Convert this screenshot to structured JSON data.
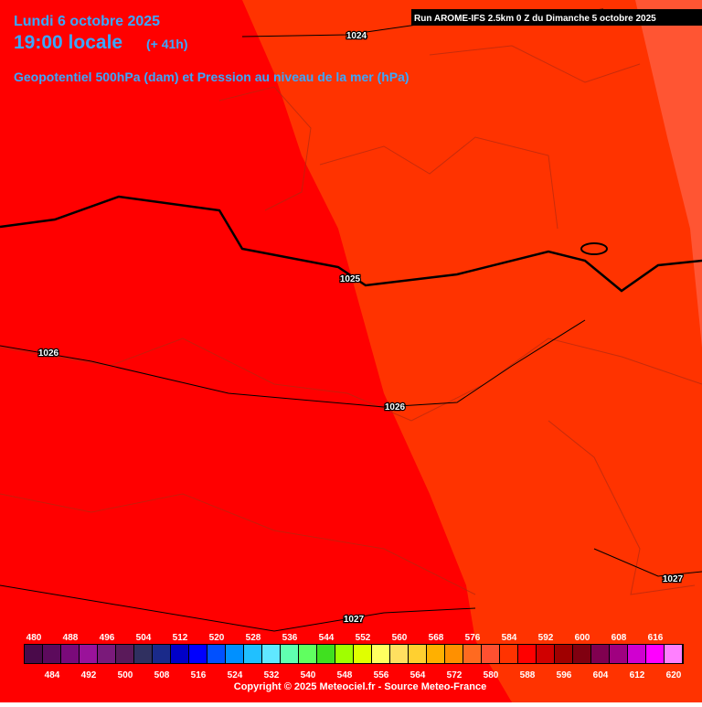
{
  "header": {
    "date": "Lundi 6 octobre 2025",
    "time": "19:00 locale",
    "lead": "(+ 41h)",
    "parameter": "Geopotentiel 500hPa (dam) et Pression au niveau de la mer (hPa)",
    "run": "Run AROME-IFS 2.5km 0 Z du Dimanche 5 octobre 2025"
  },
  "isobars": [
    {
      "label": "1024"
    },
    {
      "label": "1025"
    },
    {
      "label": "1026"
    },
    {
      "label": "1026"
    },
    {
      "label": "1027"
    },
    {
      "label": "1027"
    }
  ],
  "legend": [
    {
      "value": "480",
      "color": "#4a0a4a"
    },
    {
      "value": "484",
      "color": "#5c0a5c"
    },
    {
      "value": "488",
      "color": "#7a0a7a"
    },
    {
      "value": "492",
      "color": "#9a129a"
    },
    {
      "value": "496",
      "color": "#7a1a7a"
    },
    {
      "value": "500",
      "color": "#5a1a5a"
    },
    {
      "value": "504",
      "color": "#303060"
    },
    {
      "value": "508",
      "color": "#1a2a8a"
    },
    {
      "value": "512",
      "color": "#0000c8"
    },
    {
      "value": "516",
      "color": "#0000ff"
    },
    {
      "value": "520",
      "color": "#0050ff"
    },
    {
      "value": "524",
      "color": "#0090ff"
    },
    {
      "value": "528",
      "color": "#20c0ff"
    },
    {
      "value": "532",
      "color": "#60e8ff"
    },
    {
      "value": "536",
      "color": "#60ffb0"
    },
    {
      "value": "540",
      "color": "#60ff60"
    },
    {
      "value": "544",
      "color": "#40e020"
    },
    {
      "value": "548",
      "color": "#a0ff00"
    },
    {
      "value": "552",
      "color": "#e0ff00"
    },
    {
      "value": "556",
      "color": "#ffff60"
    },
    {
      "value": "560",
      "color": "#ffe060"
    },
    {
      "value": "564",
      "color": "#ffd030"
    },
    {
      "value": "568",
      "color": "#ffb000"
    },
    {
      "value": "572",
      "color": "#ff9000"
    },
    {
      "value": "576",
      "color": "#ff6a20"
    },
    {
      "value": "580",
      "color": "#ff5030"
    },
    {
      "value": "584",
      "color": "#ff3300"
    },
    {
      "value": "588",
      "color": "#ff0000"
    },
    {
      "value": "592",
      "color": "#d00000"
    },
    {
      "value": "596",
      "color": "#a00000"
    },
    {
      "value": "600",
      "color": "#800010"
    },
    {
      "value": "604",
      "color": "#800050"
    },
    {
      "value": "608",
      "color": "#a00080"
    },
    {
      "value": "612",
      "color": "#d000d0"
    },
    {
      "value": "616",
      "color": "#ff00ff"
    },
    {
      "value": "620",
      "color": "#ff80ff"
    }
  ],
  "footer": {
    "copyright": "Copyright © 2025 Meteociel.fr - Source Meteo-France"
  }
}
